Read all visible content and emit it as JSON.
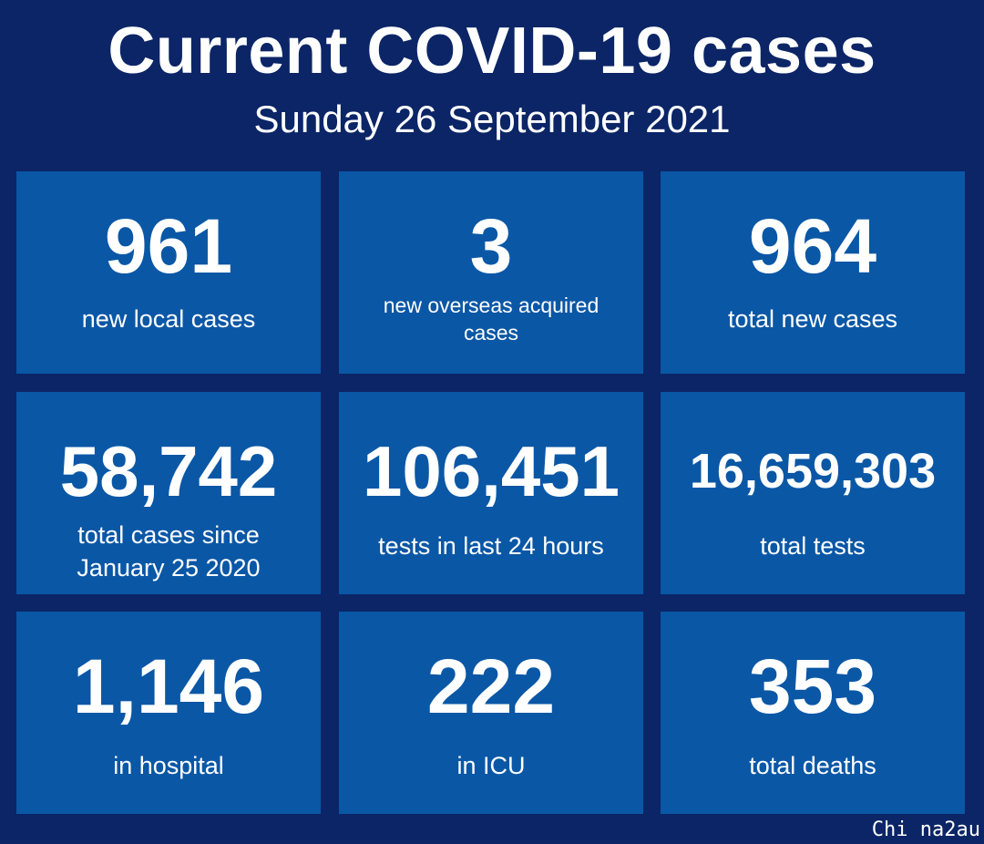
{
  "header": {
    "title": "Current COVID-19 cases",
    "date": "Sunday 26 September 2021"
  },
  "stats": [
    {
      "value": "961",
      "label": "new local cases"
    },
    {
      "value": "3",
      "label": "new overseas acquired cases"
    },
    {
      "value": "964",
      "label": "total new cases"
    },
    {
      "value": "58,742",
      "label_line1": "total cases since",
      "label_line2": "January 25 2020"
    },
    {
      "value": "106,451",
      "label": "tests in last 24 hours"
    },
    {
      "value": "16,659,303",
      "label": "total tests"
    },
    {
      "value": "1,146",
      "label": "in hospital"
    },
    {
      "value": "222",
      "label": "in ICU"
    },
    {
      "value": "353",
      "label": "total deaths"
    }
  ],
  "watermark": "Chi na2au",
  "colors": {
    "background": "#0b2566",
    "tile": "#0a57a6",
    "text": "#ffffff"
  }
}
